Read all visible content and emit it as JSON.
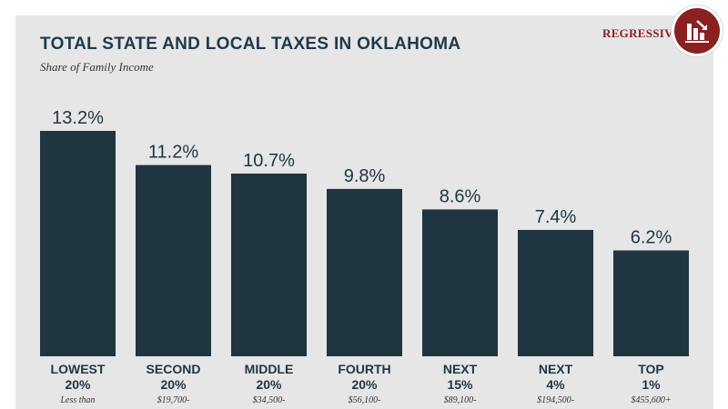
{
  "header": {
    "title": "TOTAL STATE AND LOCAL TAXES IN OKLAHOMA",
    "subtitle": "Share of Family Income"
  },
  "badge": {
    "label": "REGRESSIVE",
    "icon": "regressive-chart-icon",
    "color": "#8b2020"
  },
  "colors": {
    "bar": "#1f3540",
    "panel": "#e6e6e6",
    "accent": "#8b2020"
  },
  "chart_data": {
    "type": "bar",
    "title": "TOTAL STATE AND LOCAL TAXES IN OKLAHOMA",
    "subtitle": "Share of Family Income",
    "xlabel": "",
    "ylabel": "",
    "ylim": [
      0,
      13.2
    ],
    "grid": false,
    "categories": [
      {
        "line1": "LOWEST",
        "line2": "20%",
        "line3": "Less than"
      },
      {
        "line1": "SECOND",
        "line2": "20%",
        "line3": "$19,700-"
      },
      {
        "line1": "MIDDLE",
        "line2": "20%",
        "line3": "$34,500-"
      },
      {
        "line1": "FOURTH",
        "line2": "20%",
        "line3": "$56,100-"
      },
      {
        "line1": "NEXT",
        "line2": "15%",
        "line3": "$89,100-"
      },
      {
        "line1": "NEXT",
        "line2": "4%",
        "line3": "$194,500-"
      },
      {
        "line1": "TOP",
        "line2": "1%",
        "line3": "$455,600+"
      }
    ],
    "values": [
      13.2,
      11.2,
      10.7,
      9.8,
      8.6,
      7.4,
      6.2
    ],
    "value_labels": [
      "13.2%",
      "11.2%",
      "10.7%",
      "9.8%",
      "8.6%",
      "7.4%",
      "6.2%"
    ]
  }
}
